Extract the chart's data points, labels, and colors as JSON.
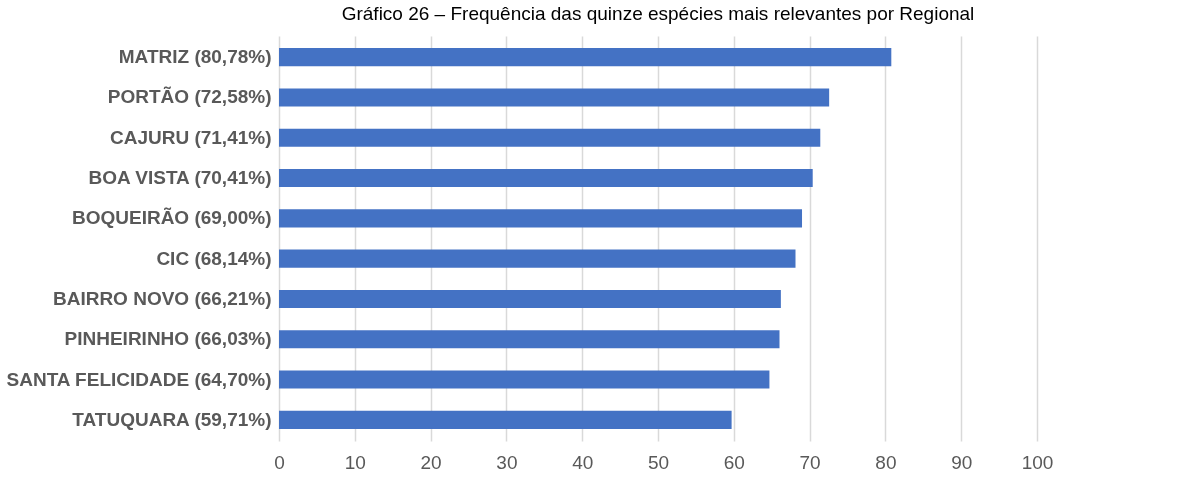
{
  "chart_data": {
    "type": "bar",
    "orientation": "horizontal",
    "title": "Gráfico 26 – Frequência das quinze espécies mais relevantes por Regional",
    "categories": [
      "MATRIZ (80,78%)",
      "PORTÃO (72,58%)",
      "CAJURU (71,41%)",
      "BOA VISTA (70,41%)",
      "BOQUEIRÃO (69,00%)",
      "CIC (68,14%)",
      "BAIRRO NOVO (66,21%)",
      "PINHEIRINHO (66,03%)",
      "SANTA FELICIDADE (64,70%)",
      "TATUQUARA (59,71%)"
    ],
    "values": [
      80.78,
      72.58,
      71.41,
      70.41,
      69.0,
      68.14,
      66.21,
      66.03,
      64.7,
      59.71
    ],
    "color": "#4472c4",
    "xlim": [
      0,
      100
    ],
    "xticks": [
      0,
      10,
      20,
      30,
      40,
      50,
      60,
      70,
      80,
      90,
      100
    ],
    "grid": "x"
  }
}
